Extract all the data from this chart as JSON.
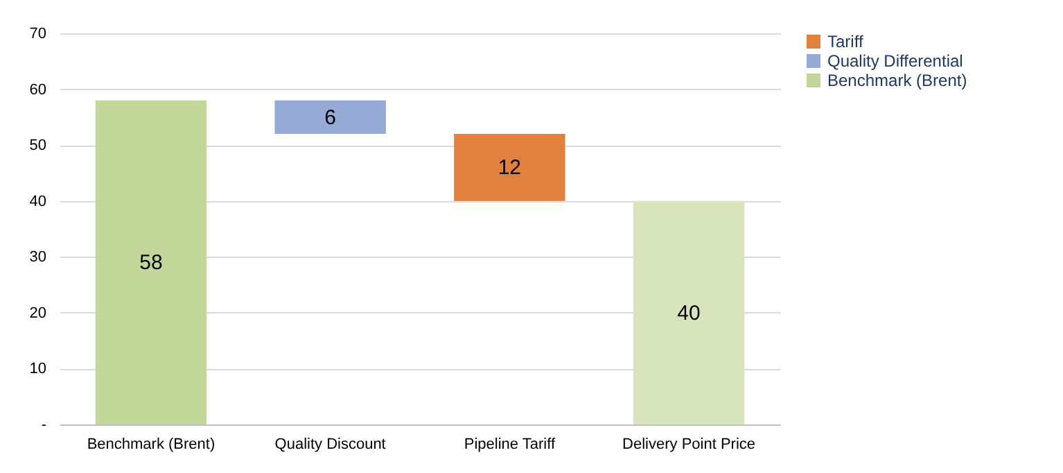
{
  "chart_data": {
    "type": "bar",
    "categories": [
      "Benchmark (Brent)",
      "Quality Discount",
      "Pipeline Tariff",
      "Delivery Point Price"
    ],
    "series": [
      {
        "name": "Tariff",
        "color": "#e0823d",
        "values": [
          null,
          null,
          12,
          null
        ],
        "base": [
          null,
          null,
          40,
          null
        ]
      },
      {
        "name": "Quality Differential",
        "color": "#95abd6",
        "values": [
          null,
          6,
          null,
          null
        ],
        "base": [
          null,
          52,
          null,
          null
        ]
      },
      {
        "name": "Benchmark (Brent)",
        "color": "#c4d79b",
        "values": [
          58,
          null,
          null,
          40
        ],
        "base": [
          0,
          null,
          null,
          0
        ],
        "colors": [
          "#c4d79b",
          null,
          null,
          "#d8e4bc"
        ]
      }
    ],
    "ylim": [
      0,
      70
    ],
    "yticks": [
      {
        "value": 0,
        "label": "-"
      },
      10,
      20,
      30,
      40,
      50,
      60,
      70
    ],
    "grid": "y",
    "legend": "right",
    "data_labels": true
  }
}
